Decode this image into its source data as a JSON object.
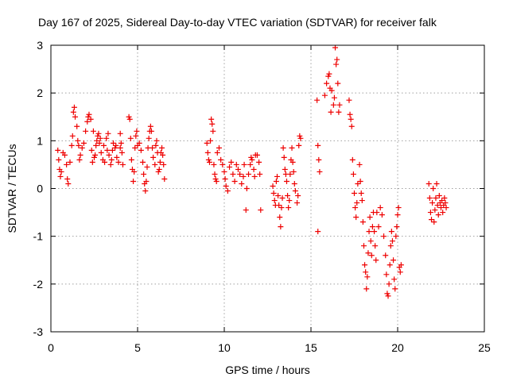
{
  "chart_data": {
    "type": "scatter",
    "title": "Day 167 of 2025, Sidereal Day-to-day VTEC variation (SDTVAR) for receiver falk",
    "xlabel": "GPS time / hours",
    "ylabel": "SDTVAR / TECUs",
    "xlim": [
      0,
      25
    ],
    "ylim": [
      -3,
      3
    ],
    "xticks": [
      0,
      5,
      10,
      15,
      20,
      25
    ],
    "yticks": [
      -3,
      -2,
      -1,
      0,
      1,
      2,
      3
    ],
    "xtick_labels": [
      "0",
      "5",
      "10",
      "15",
      "20",
      "25"
    ],
    "ytick_labels": [
      "-3",
      "-2",
      "-1",
      "0",
      "1",
      "2",
      "3"
    ],
    "grid": true,
    "marker": "+",
    "color": "#ee0000",
    "series": [
      {
        "name": "SDTVAR",
        "points": [
          [
            0.4,
            0.8
          ],
          [
            0.45,
            0.6
          ],
          [
            0.5,
            0.4
          ],
          [
            0.55,
            0.25
          ],
          [
            0.6,
            0.35
          ],
          [
            0.7,
            0.75
          ],
          [
            0.8,
            0.7
          ],
          [
            0.9,
            0.5
          ],
          [
            0.95,
            0.2
          ],
          [
            1.0,
            0.1
          ],
          [
            1.1,
            0.55
          ],
          [
            1.2,
            0.9
          ],
          [
            1.25,
            1.1
          ],
          [
            1.3,
            1.6
          ],
          [
            1.35,
            1.7
          ],
          [
            1.4,
            1.5
          ],
          [
            1.5,
            1.3
          ],
          [
            1.55,
            1.0
          ],
          [
            1.6,
            0.9
          ],
          [
            1.65,
            0.6
          ],
          [
            1.7,
            0.7
          ],
          [
            1.8,
            0.85
          ],
          [
            1.9,
            0.95
          ],
          [
            2.0,
            1.2
          ],
          [
            2.1,
            1.4
          ],
          [
            2.15,
            1.5
          ],
          [
            2.2,
            1.55
          ],
          [
            2.3,
            1.45
          ],
          [
            2.35,
            0.8
          ],
          [
            2.4,
            0.55
          ],
          [
            2.5,
            0.65
          ],
          [
            2.6,
            0.9
          ],
          [
            2.7,
            1.1
          ],
          [
            2.75,
            1.15
          ],
          [
            2.8,
            0.95
          ],
          [
            2.9,
            0.75
          ],
          [
            3.0,
            0.6
          ],
          [
            3.1,
            0.55
          ],
          [
            3.2,
            1.05
          ],
          [
            3.3,
            1.15
          ],
          [
            3.35,
            0.7
          ],
          [
            3.45,
            0.5
          ],
          [
            3.55,
            0.8
          ],
          [
            3.6,
            0.95
          ],
          [
            3.7,
            0.85
          ],
          [
            3.8,
            0.65
          ],
          [
            3.9,
            0.55
          ],
          [
            4.0,
            0.85
          ],
          [
            4.1,
            0.75
          ],
          [
            4.15,
            0.5
          ],
          [
            2.45,
            1.2
          ],
          [
            2.55,
            0.7
          ],
          [
            2.65,
            1.0
          ],
          [
            2.85,
            1.05
          ],
          [
            3.05,
            0.9
          ],
          [
            3.25,
            0.8
          ],
          [
            3.5,
            0.6
          ],
          [
            3.75,
            0.9
          ],
          [
            4.05,
            0.95
          ],
          [
            4.0,
            1.15
          ],
          [
            4.5,
            1.5
          ],
          [
            4.55,
            1.45
          ],
          [
            4.6,
            1.05
          ],
          [
            4.65,
            0.6
          ],
          [
            4.7,
            0.4
          ],
          [
            4.75,
            0.15
          ],
          [
            4.8,
            0.35
          ],
          [
            4.85,
            0.85
          ],
          [
            4.9,
            1.1
          ],
          [
            4.95,
            1.2
          ],
          [
            5.0,
            0.9
          ],
          [
            5.1,
            0.95
          ],
          [
            5.2,
            0.8
          ],
          [
            5.3,
            0.55
          ],
          [
            5.35,
            0.3
          ],
          [
            5.4,
            0.1
          ],
          [
            5.45,
            -0.05
          ],
          [
            5.5,
            0.15
          ],
          [
            5.55,
            0.45
          ],
          [
            5.6,
            0.85
          ],
          [
            5.65,
            1.05
          ],
          [
            5.7,
            1.2
          ],
          [
            5.75,
            1.3
          ],
          [
            5.8,
            1.2
          ],
          [
            5.85,
            0.85
          ],
          [
            5.9,
            0.65
          ],
          [
            6.0,
            0.5
          ],
          [
            6.05,
            0.9
          ],
          [
            6.1,
            1.0
          ],
          [
            6.15,
            0.75
          ],
          [
            6.2,
            0.35
          ],
          [
            6.25,
            0.4
          ],
          [
            6.3,
            0.55
          ],
          [
            6.35,
            0.75
          ],
          [
            6.4,
            0.85
          ],
          [
            6.45,
            0.7
          ],
          [
            6.5,
            0.5
          ],
          [
            6.55,
            0.2
          ],
          [
            9.0,
            0.95
          ],
          [
            9.05,
            0.75
          ],
          [
            9.1,
            0.6
          ],
          [
            9.15,
            0.55
          ],
          [
            9.2,
            1.0
          ],
          [
            9.25,
            1.45
          ],
          [
            9.3,
            1.35
          ],
          [
            9.35,
            1.2
          ],
          [
            9.4,
            0.5
          ],
          [
            9.45,
            0.3
          ],
          [
            9.5,
            0.2
          ],
          [
            9.55,
            0.15
          ],
          [
            9.6,
            0.75
          ],
          [
            9.7,
            0.85
          ],
          [
            9.8,
            0.6
          ],
          [
            9.9,
            0.5
          ],
          [
            10.0,
            0.35
          ],
          [
            10.05,
            0.2
          ],
          [
            10.1,
            0.05
          ],
          [
            10.2,
            -0.05
          ],
          [
            10.3,
            0.45
          ],
          [
            10.4,
            0.55
          ],
          [
            10.5,
            0.3
          ],
          [
            10.6,
            0.15
          ],
          [
            10.7,
            0.5
          ],
          [
            10.8,
            0.4
          ],
          [
            10.9,
            0.3
          ],
          [
            11.0,
            0.1
          ],
          [
            11.1,
            0.25
          ],
          [
            11.15,
            0.5
          ],
          [
            11.25,
            -0.45
          ],
          [
            11.3,
            0.0
          ],
          [
            11.4,
            0.3
          ],
          [
            11.5,
            0.5
          ],
          [
            11.55,
            0.65
          ],
          [
            11.6,
            0.6
          ],
          [
            11.7,
            0.4
          ],
          [
            11.75,
            0.25
          ],
          [
            11.8,
            0.7
          ],
          [
            11.9,
            0.7
          ],
          [
            12.0,
            0.55
          ],
          [
            12.05,
            0.3
          ],
          [
            12.1,
            -0.45
          ],
          [
            12.8,
            0.05
          ],
          [
            12.85,
            -0.1
          ],
          [
            12.9,
            -0.25
          ],
          [
            12.95,
            -0.35
          ],
          [
            13.0,
            0.15
          ],
          [
            13.05,
            0.25
          ],
          [
            13.1,
            -0.15
          ],
          [
            13.15,
            -0.35
          ],
          [
            13.2,
            -0.6
          ],
          [
            13.25,
            -0.8
          ],
          [
            13.3,
            -0.4
          ],
          [
            13.35,
            -0.2
          ],
          [
            13.4,
            0.85
          ],
          [
            13.45,
            0.65
          ],
          [
            13.5,
            0.4
          ],
          [
            13.55,
            0.3
          ],
          [
            13.6,
            0.15
          ],
          [
            13.65,
            -0.15
          ],
          [
            13.7,
            -0.4
          ],
          [
            13.75,
            -0.25
          ],
          [
            13.8,
            0.3
          ],
          [
            13.85,
            0.6
          ],
          [
            13.9,
            0.85
          ],
          [
            13.95,
            0.55
          ],
          [
            14.0,
            0.35
          ],
          [
            14.05,
            0.1
          ],
          [
            14.1,
            -0.05
          ],
          [
            14.2,
            -0.3
          ],
          [
            14.25,
            -0.15
          ],
          [
            14.3,
            0.9
          ],
          [
            14.35,
            1.1
          ],
          [
            14.4,
            1.05
          ],
          [
            15.35,
            1.85
          ],
          [
            15.4,
            0.9
          ],
          [
            15.45,
            0.6
          ],
          [
            15.5,
            0.35
          ],
          [
            15.4,
            -0.9
          ],
          [
            15.8,
            1.95
          ],
          [
            15.9,
            2.2
          ],
          [
            16.0,
            2.35
          ],
          [
            16.05,
            2.4
          ],
          [
            16.1,
            2.1
          ],
          [
            16.15,
            1.6
          ],
          [
            16.2,
            2.05
          ],
          [
            16.3,
            1.75
          ],
          [
            16.35,
            1.9
          ],
          [
            16.4,
            2.95
          ],
          [
            16.45,
            2.6
          ],
          [
            16.5,
            2.7
          ],
          [
            16.55,
            2.2
          ],
          [
            16.6,
            1.6
          ],
          [
            16.65,
            1.75
          ],
          [
            17.2,
            1.85
          ],
          [
            17.25,
            1.55
          ],
          [
            17.3,
            1.45
          ],
          [
            17.35,
            1.3
          ],
          [
            17.4,
            0.6
          ],
          [
            17.45,
            0.3
          ],
          [
            17.5,
            -0.1
          ],
          [
            17.55,
            -0.4
          ],
          [
            17.6,
            -0.6
          ],
          [
            17.65,
            -0.3
          ],
          [
            17.7,
            0.1
          ],
          [
            17.8,
            0.5
          ],
          [
            17.85,
            0.15
          ],
          [
            17.9,
            -0.1
          ],
          [
            17.95,
            -0.25
          ],
          [
            18.0,
            -0.7
          ],
          [
            18.05,
            -1.2
          ],
          [
            18.1,
            -1.6
          ],
          [
            18.15,
            -1.75
          ],
          [
            18.2,
            -2.1
          ],
          [
            18.25,
            -1.85
          ],
          [
            18.3,
            -1.35
          ],
          [
            18.35,
            -0.9
          ],
          [
            18.4,
            -0.6
          ],
          [
            18.45,
            -1.1
          ],
          [
            18.5,
            -1.4
          ],
          [
            18.55,
            -0.8
          ],
          [
            18.6,
            -0.5
          ],
          [
            18.65,
            -0.9
          ],
          [
            18.7,
            -1.2
          ],
          [
            18.75,
            -1.5
          ],
          [
            18.8,
            -0.5
          ],
          [
            18.9,
            -0.8
          ],
          [
            19.0,
            -0.4
          ],
          [
            19.1,
            -0.55
          ],
          [
            19.2,
            -1.0
          ],
          [
            19.3,
            -1.4
          ],
          [
            19.35,
            -1.8
          ],
          [
            19.4,
            -2.2
          ],
          [
            19.45,
            -2.25
          ],
          [
            19.5,
            -2.0
          ],
          [
            19.55,
            -1.6
          ],
          [
            19.6,
            -1.2
          ],
          [
            19.65,
            -0.9
          ],
          [
            19.7,
            -1.1
          ],
          [
            19.75,
            -1.5
          ],
          [
            19.8,
            -1.9
          ],
          [
            19.85,
            -2.1
          ],
          [
            19.9,
            -1.0
          ],
          [
            19.95,
            -0.8
          ],
          [
            20.0,
            -0.55
          ],
          [
            20.05,
            -0.4
          ],
          [
            20.1,
            -1.65
          ],
          [
            20.15,
            -1.75
          ],
          [
            20.2,
            -1.6
          ],
          [
            21.8,
            0.1
          ],
          [
            21.85,
            -0.2
          ],
          [
            21.9,
            -0.5
          ],
          [
            21.95,
            -0.65
          ],
          [
            22.0,
            -0.3
          ],
          [
            22.05,
            0.0
          ],
          [
            22.1,
            -0.7
          ],
          [
            22.15,
            -0.45
          ],
          [
            22.2,
            -0.2
          ],
          [
            22.25,
            0.1
          ],
          [
            22.3,
            -0.35
          ],
          [
            22.35,
            -0.55
          ],
          [
            22.4,
            -0.15
          ],
          [
            22.45,
            -0.3
          ],
          [
            22.5,
            -0.4
          ],
          [
            22.55,
            -0.25
          ],
          [
            22.6,
            -0.5
          ],
          [
            22.65,
            -0.35
          ],
          [
            22.7,
            -0.2
          ],
          [
            22.75,
            -0.3
          ],
          [
            22.8,
            -0.4
          ]
        ]
      }
    ]
  }
}
